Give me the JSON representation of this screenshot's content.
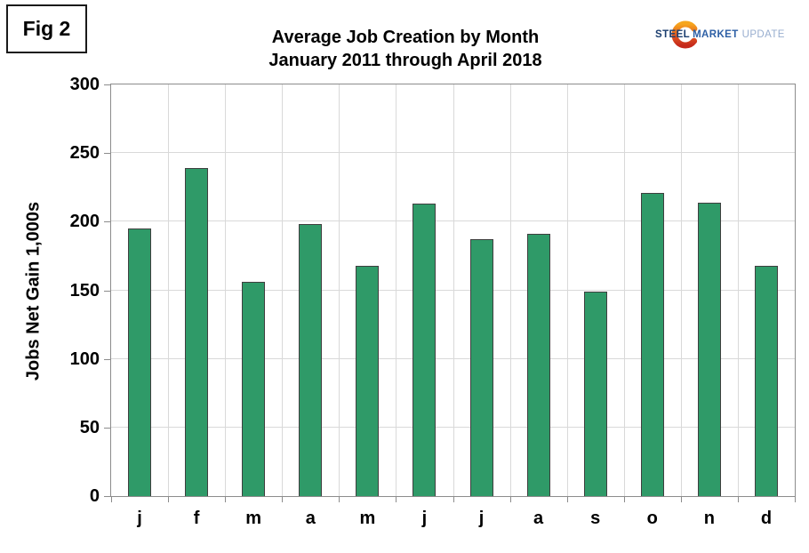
{
  "fig_label": "Fig 2",
  "title": {
    "line1": "Average Job Creation by Month",
    "line2": "January 2011 through April 2018"
  },
  "logo": {
    "steel": "STEEL",
    "market": "MARKET",
    "update": "UPDATE",
    "crescent_gradient": [
      "#f6a61e",
      "#e2571f",
      "#c52a1c"
    ]
  },
  "chart_data": {
    "type": "bar",
    "title": "Average Job Creation by Month — January 2011 through April 2018",
    "categories": [
      "j",
      "f",
      "m",
      "a",
      "m",
      "j",
      "j",
      "a",
      "s",
      "o",
      "n",
      "d"
    ],
    "values": [
      195,
      239,
      156,
      198,
      168,
      213,
      187,
      191,
      149,
      221,
      214,
      168
    ],
    "xlabel": "",
    "ylabel": "Jobs Net Gain 1,000s",
    "ylim": [
      0,
      300
    ],
    "yticks": [
      0,
      50,
      100,
      150,
      200,
      250,
      300
    ],
    "grid": true,
    "legend": false,
    "bar_color": "#2f9a68",
    "bar_border_color": "#3f3f3f",
    "gridline_color": "#d9d9d9",
    "axis_color": "#8c8c8c"
  }
}
